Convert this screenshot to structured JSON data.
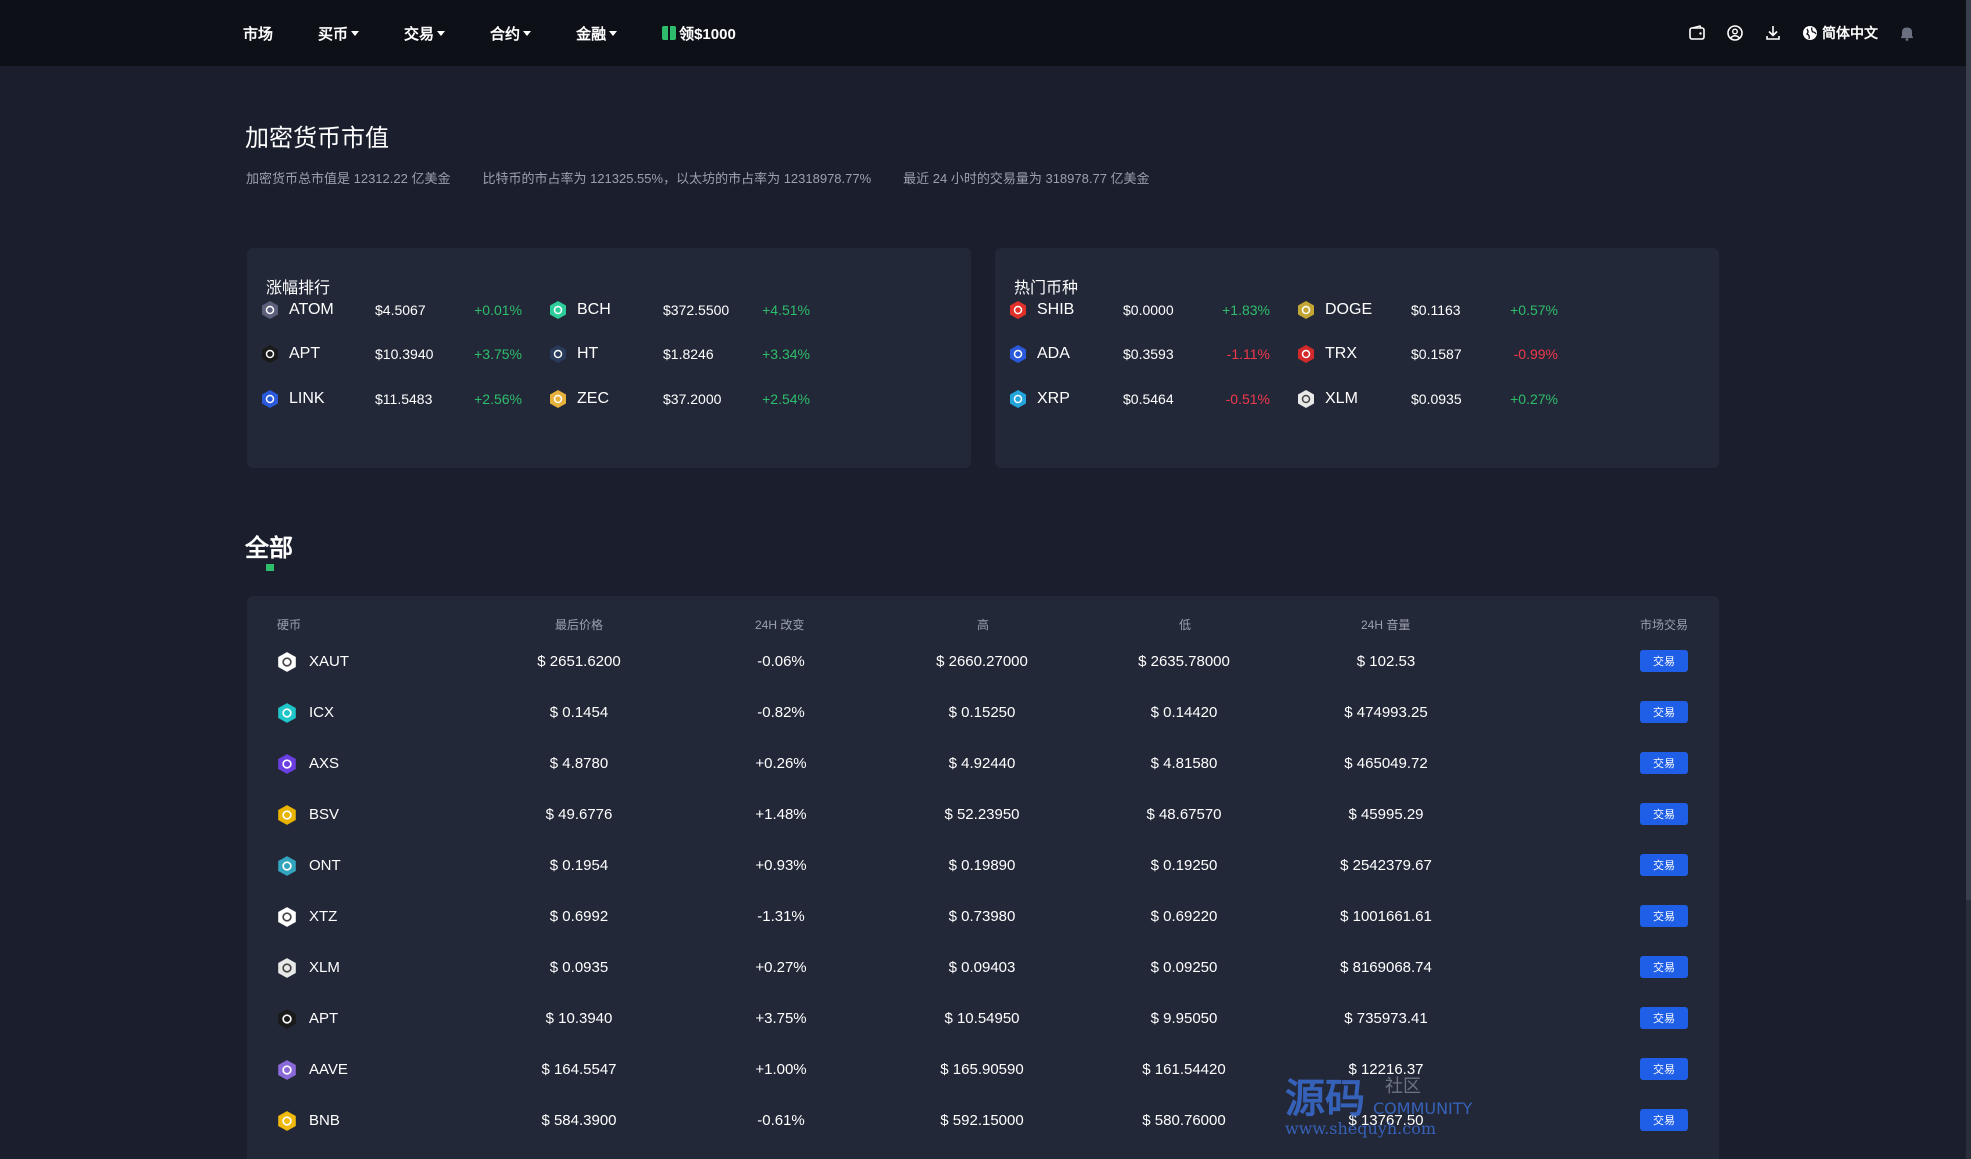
{
  "nav": {
    "items": [
      {
        "label": "市场",
        "caret": false
      },
      {
        "label": "买币",
        "caret": true
      },
      {
        "label": "交易",
        "caret": true
      },
      {
        "label": "合约",
        "caret": true
      },
      {
        "label": "金融",
        "caret": true
      }
    ],
    "promo_label": "领$1000",
    "language": "简体中文"
  },
  "page": {
    "title": "加密货币市值",
    "stats": [
      "加密货币总市值是 12312.22 亿美金",
      "比特币的市占率为 121325.55%，以太坊的市占率为 12318978.77%",
      "最近 24 小时的交易量为 318978.77 亿美金"
    ]
  },
  "gainers": {
    "title": "涨幅排行",
    "items": [
      {
        "symbol": "ATOM",
        "price": "$4.5067",
        "change": "+0.01%",
        "dir": "up",
        "icon": "atom-icon",
        "color": "#5b5f7a"
      },
      {
        "symbol": "BCH",
        "price": "$372.5500",
        "change": "+4.51%",
        "dir": "up",
        "icon": "bch-icon",
        "color": "#2ecc9a"
      },
      {
        "symbol": "APT",
        "price": "$10.3940",
        "change": "+3.75%",
        "dir": "up",
        "icon": "apt-icon",
        "color": "#1a1a1a"
      },
      {
        "symbol": "HT",
        "price": "$1.8246",
        "change": "+3.34%",
        "dir": "up",
        "icon": "ht-icon",
        "color": "#2a3a5a"
      },
      {
        "symbol": "LINK",
        "price": "$11.5483",
        "change": "+2.56%",
        "dir": "up",
        "icon": "link-icon",
        "color": "#2a5ada"
      },
      {
        "symbol": "ZEC",
        "price": "$37.2000",
        "change": "+2.54%",
        "dir": "up",
        "icon": "zec-icon",
        "color": "#e5b13a"
      }
    ]
  },
  "hot": {
    "title": "热门币种",
    "items": [
      {
        "symbol": "SHIB",
        "price": "$0.0000",
        "change": "+1.83%",
        "dir": "up",
        "icon": "shib-icon",
        "color": "#e0322a"
      },
      {
        "symbol": "DOGE",
        "price": "$0.1163",
        "change": "+0.57%",
        "dir": "up",
        "icon": "doge-icon",
        "color": "#c2a633"
      },
      {
        "symbol": "ADA",
        "price": "$0.3593",
        "change": "-1.11%",
        "dir": "down",
        "icon": "ada-icon",
        "color": "#2a5ada"
      },
      {
        "symbol": "TRX",
        "price": "$0.1587",
        "change": "-0.99%",
        "dir": "down",
        "icon": "trx-icon",
        "color": "#d22a2a"
      },
      {
        "symbol": "XRP",
        "price": "$0.5464",
        "change": "-0.51%",
        "dir": "down",
        "icon": "xrp-icon",
        "color": "#23a5dc"
      },
      {
        "symbol": "XLM",
        "price": "$0.0935",
        "change": "+0.27%",
        "dir": "up",
        "icon": "xlm-icon",
        "color": "#e8e8e8"
      }
    ]
  },
  "all": {
    "title": "全部",
    "headers": [
      "硬币",
      "最后价格",
      "24H 改变",
      "高",
      "低",
      "24H 音量",
      "市场交易"
    ],
    "trade_label": "交易",
    "rows": [
      {
        "symbol": "XAUT",
        "price": "$ 2651.6200",
        "change": "-0.06%",
        "dir": "down",
        "high": "$ 2660.27000",
        "low": "$ 2635.78000",
        "volume": "$ 102.53",
        "icon": "xaut-icon",
        "color": "#ffffff"
      },
      {
        "symbol": "ICX",
        "price": "$ 0.1454",
        "change": "-0.82%",
        "dir": "down",
        "high": "$ 0.15250",
        "low": "$ 0.14420",
        "volume": "$ 474993.25",
        "icon": "icx-icon",
        "color": "#1fc5c9"
      },
      {
        "symbol": "AXS",
        "price": "$ 4.8780",
        "change": "+0.26%",
        "dir": "up",
        "high": "$ 4.92440",
        "low": "$ 4.81580",
        "volume": "$ 465049.72",
        "icon": "axs-icon",
        "color": "#6a3ee0"
      },
      {
        "symbol": "BSV",
        "price": "$ 49.6776",
        "change": "+1.48%",
        "dir": "up",
        "high": "$ 52.23950",
        "low": "$ 48.67570",
        "volume": "$ 45995.29",
        "icon": "bsv-icon",
        "color": "#eab300"
      },
      {
        "symbol": "ONT",
        "price": "$ 0.1954",
        "change": "+0.93%",
        "dir": "up",
        "high": "$ 0.19890",
        "low": "$ 0.19250",
        "volume": "$ 2542379.67",
        "icon": "ont-icon",
        "color": "#32a4be"
      },
      {
        "symbol": "XTZ",
        "price": "$ 0.6992",
        "change": "-1.31%",
        "dir": "down",
        "high": "$ 0.73980",
        "low": "$ 0.69220",
        "volume": "$ 1001661.61",
        "icon": "xtz-icon",
        "color": "#ffffff"
      },
      {
        "symbol": "XLM",
        "price": "$ 0.0935",
        "change": "+0.27%",
        "dir": "up",
        "high": "$ 0.09403",
        "low": "$ 0.09250",
        "volume": "$ 8169068.74",
        "icon": "xlm-icon",
        "color": "#e8e8e8"
      },
      {
        "symbol": "APT",
        "price": "$ 10.3940",
        "change": "+3.75%",
        "dir": "up",
        "high": "$ 10.54950",
        "low": "$ 9.95050",
        "volume": "$ 735973.41",
        "icon": "apt-icon",
        "color": "#1a1a1a"
      },
      {
        "symbol": "AAVE",
        "price": "$ 164.5547",
        "change": "+1.00%",
        "dir": "up",
        "high": "$ 165.90590",
        "low": "$ 161.54420",
        "volume": "$ 12216.37",
        "icon": "aave-icon",
        "color": "#8a6ad8"
      },
      {
        "symbol": "BNB",
        "price": "$ 584.3900",
        "change": "-0.61%",
        "dir": "down",
        "high": "$ 592.15000",
        "low": "$ 580.76000",
        "volume": "$ 13767.50",
        "icon": "bnb-icon",
        "color": "#f0b90b"
      }
    ]
  },
  "colors": {
    "up": "#2ebd6b",
    "down": "#f0384b",
    "accent": "#1f5ee6"
  }
}
